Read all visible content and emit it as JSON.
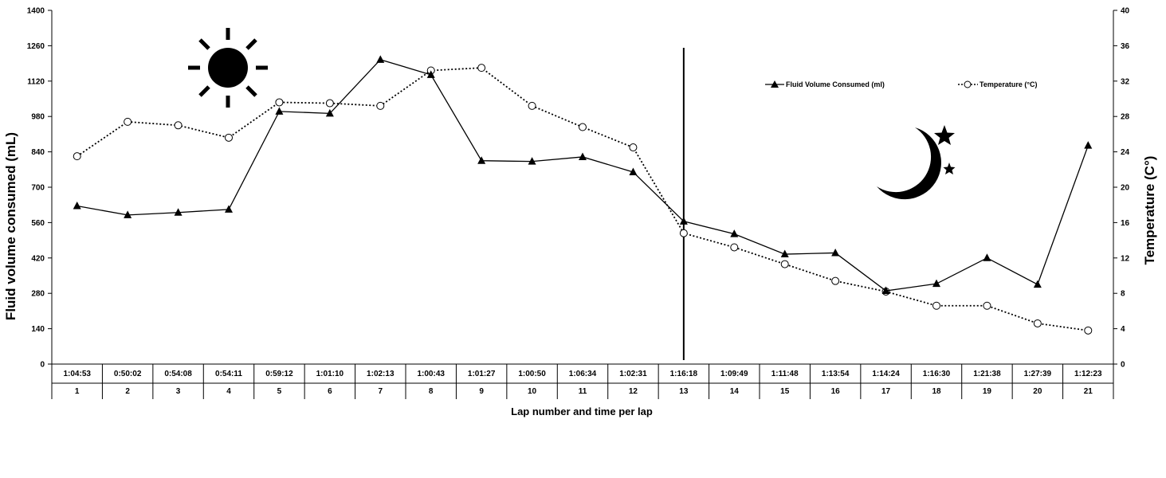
{
  "chart_data": {
    "type": "line",
    "title": "",
    "xlabel": "Lap number and time per lap",
    "ylabel": "Fluid volume consumed (mL)",
    "y2label": "Temperature (C°)",
    "laps": [
      "1",
      "2",
      "3",
      "4",
      "5",
      "6",
      "7",
      "8",
      "9",
      "10",
      "11",
      "12",
      "13",
      "14",
      "15",
      "16",
      "17",
      "18",
      "19",
      "20",
      "21"
    ],
    "lap_times": [
      "1:04:53",
      "0:50:02",
      "0:54:08",
      "0:54:11",
      "0:59:12",
      "1:01:10",
      "1:02:13",
      "1:00:43",
      "1:01:27",
      "1:00:50",
      "1:06:34",
      "1:02:31",
      "1:16:18",
      "1:09:49",
      "1:11:48",
      "1:13:54",
      "1:14:24",
      "1:16:30",
      "1:21:38",
      "1:27:39",
      "1:12:23"
    ],
    "ylim": [
      0,
      1400
    ],
    "yticks": [
      0,
      140,
      280,
      420,
      560,
      700,
      840,
      980,
      1120,
      1260,
      1400
    ],
    "y2lim": [
      0,
      40
    ],
    "y2ticks": [
      0,
      4,
      8,
      12,
      16,
      20,
      24,
      28,
      32,
      36,
      40
    ],
    "series": [
      {
        "name": "Fluid Volume Consumed (ml)",
        "axis": "left",
        "marker": "triangle",
        "line": "solid",
        "values": [
          626,
          590,
          600,
          612,
          1000,
          992,
          1205,
          1145,
          805,
          802,
          820,
          760,
          565,
          515,
          435,
          440,
          290,
          318,
          420,
          315,
          865
        ]
      },
      {
        "name": "Temperature (°C)",
        "axis": "right",
        "marker": "open-circle",
        "line": "dotted",
        "values": [
          23.5,
          27.4,
          27.0,
          25.6,
          29.6,
          29.5,
          29.2,
          33.2,
          33.5,
          29.2,
          26.8,
          24.5,
          14.8,
          13.2,
          11.3,
          9.4,
          8.2,
          6.6,
          6.6,
          4.6,
          3.8
        ]
      }
    ],
    "divider_after_lap": "13",
    "legend_position": "top-right",
    "grid": false,
    "decorations": {
      "day_icon": "sun-icon",
      "night_icon": "moon-stars-icon"
    }
  }
}
